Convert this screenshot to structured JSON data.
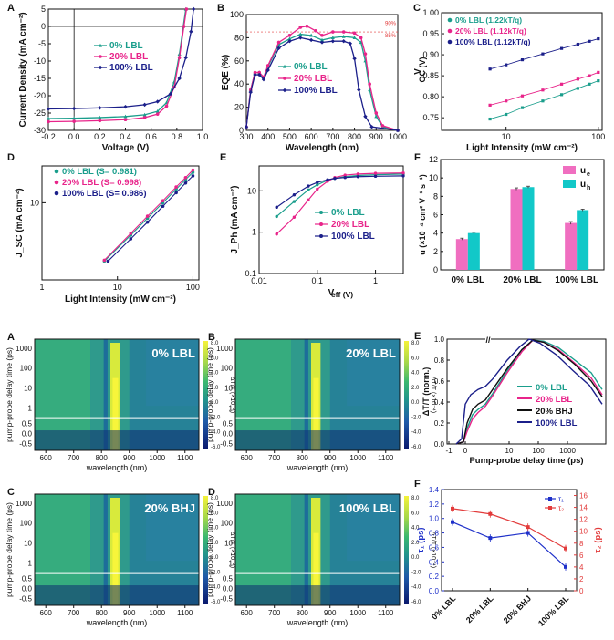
{
  "colors": {
    "teal": "#1a9e8c",
    "pink": "#e8248a",
    "navy": "#1b1f8a",
    "black": "#111111",
    "blue": "#1d2fc9",
    "red": "#e23b3b",
    "barpink": "#f06ec0",
    "barteal": "#12c8c8",
    "white": "#ffffff"
  },
  "top_panels": [
    {
      "letter": "A",
      "type": "line",
      "xlabel": "Voltage (V)",
      "ylabel": "Current Density (mA cm⁻²)",
      "xlim": [
        -0.2,
        1.0
      ],
      "ylim": [
        -30,
        5
      ],
      "xticks": [
        "-0.2",
        "0.0",
        "0.2",
        "0.4",
        "0.6",
        "0.8",
        "1.0"
      ],
      "yticks": [
        "5",
        "0",
        "-5",
        "-10",
        "-15",
        "-20",
        "-25",
        "-30"
      ],
      "legend": [
        "0% LBL",
        "20% LBL",
        "100% LBL"
      ],
      "series": [
        {
          "name": "0% LBL",
          "points": [
            [
              -0.2,
              -26.6
            ],
            [
              0.0,
              -26.5
            ],
            [
              0.2,
              -26.3
            ],
            [
              0.4,
              -26.0
            ],
            [
              0.55,
              -25.5
            ],
            [
              0.65,
              -24.5
            ],
            [
              0.72,
              -22.0
            ],
            [
              0.78,
              -16.0
            ],
            [
              0.82,
              -8.0
            ],
            [
              0.85,
              0.0
            ],
            [
              0.87,
              5.0
            ]
          ]
        },
        {
          "name": "20% LBL",
          "points": [
            [
              -0.2,
              -27.5
            ],
            [
              0.0,
              -27.4
            ],
            [
              0.2,
              -27.2
            ],
            [
              0.4,
              -26.9
            ],
            [
              0.55,
              -26.3
            ],
            [
              0.65,
              -25.3
            ],
            [
              0.72,
              -23.0
            ],
            [
              0.78,
              -17.5
            ],
            [
              0.82,
              -9.0
            ],
            [
              0.855,
              0.0
            ],
            [
              0.875,
              5.0
            ]
          ]
        },
        {
          "name": "100% LBL",
          "points": [
            [
              -0.2,
              -23.8
            ],
            [
              0.0,
              -23.7
            ],
            [
              0.2,
              -23.5
            ],
            [
              0.4,
              -23.2
            ],
            [
              0.55,
              -22.6
            ],
            [
              0.65,
              -21.7
            ],
            [
              0.75,
              -19.5
            ],
            [
              0.82,
              -15.0
            ],
            [
              0.87,
              -9.0
            ],
            [
              0.91,
              -1.5
            ],
            [
              0.93,
              5.0
            ]
          ]
        }
      ]
    },
    {
      "letter": "B",
      "type": "line",
      "xlabel": "Wavelength (nm)",
      "ylabel": "EQE (%)",
      "xlim": [
        300,
        1000
      ],
      "ylim": [
        0,
        100
      ],
      "xticks": [
        "300",
        "400",
        "500",
        "600",
        "700",
        "800",
        "900",
        "1000"
      ],
      "yticks": [
        "0",
        "20",
        "40",
        "60",
        "80",
        "100"
      ],
      "refs": [
        {
          "label": "90%",
          "value": 90,
          "color": "#e23b3b"
        },
        {
          "label": "85%",
          "value": 85,
          "color": "#e23b3b"
        }
      ],
      "legend": [
        "0% LBL",
        "20% LBL",
        "100% LBL"
      ],
      "series": [
        {
          "name": "0% LBL",
          "points": [
            [
              300,
              3
            ],
            [
              320,
              35
            ],
            [
              340,
              50
            ],
            [
              360,
              50
            ],
            [
              380,
              45
            ],
            [
              400,
              55
            ],
            [
              450,
              74
            ],
            [
              500,
              79
            ],
            [
              550,
              83
            ],
            [
              600,
              82
            ],
            [
              650,
              78
            ],
            [
              700,
              80
            ],
            [
              750,
              81
            ],
            [
              800,
              80
            ],
            [
              830,
              76
            ],
            [
              850,
              60
            ],
            [
              870,
              35
            ],
            [
              900,
              12
            ],
            [
              930,
              3
            ],
            [
              1000,
              0
            ]
          ]
        },
        {
          "name": "20% LBL",
          "points": [
            [
              300,
              3
            ],
            [
              320,
              35
            ],
            [
              340,
              50
            ],
            [
              360,
              50
            ],
            [
              380,
              46
            ],
            [
              400,
              56
            ],
            [
              450,
              76
            ],
            [
              500,
              82
            ],
            [
              550,
              89
            ],
            [
              580,
              90
            ],
            [
              620,
              86
            ],
            [
              650,
              82
            ],
            [
              700,
              85
            ],
            [
              750,
              85
            ],
            [
              800,
              84
            ],
            [
              830,
              80
            ],
            [
              850,
              66
            ],
            [
              870,
              40
            ],
            [
              900,
              15
            ],
            [
              930,
              4
            ],
            [
              1000,
              0
            ]
          ]
        },
        {
          "name": "100% LBL",
          "points": [
            [
              300,
              3
            ],
            [
              320,
              33
            ],
            [
              340,
              48
            ],
            [
              360,
              48
            ],
            [
              380,
              44
            ],
            [
              400,
              52
            ],
            [
              450,
              71
            ],
            [
              500,
              77
            ],
            [
              550,
              80
            ],
            [
              600,
              78
            ],
            [
              650,
              76
            ],
            [
              700,
              77
            ],
            [
              750,
              77
            ],
            [
              780,
              75
            ],
            [
              800,
              62
            ],
            [
              820,
              35
            ],
            [
              850,
              12
            ],
            [
              880,
              3
            ],
            [
              1000,
              0
            ]
          ]
        }
      ]
    },
    {
      "letter": "C",
      "type": "scatter",
      "xlabel": "Light Intensity (mW cm⁻²)",
      "ylabel": "V_OC (V)",
      "xscale": "log",
      "xlim": [
        2,
        110
      ],
      "ylim": [
        0.72,
        1.0
      ],
      "xticks": [
        "10",
        "100"
      ],
      "yticks": [
        "0.75",
        "0.80",
        "0.85",
        "0.90",
        "0.95",
        "1.00"
      ],
      "legend": [
        "0% LBL (1.22kT/q)",
        "20% LBL (1.12kT/q)",
        "100% LBL (1.12kT/q)"
      ],
      "series": [
        {
          "name": "0% LBL (1.22kT/q)",
          "points": [
            [
              6.7,
              0.747
            ],
            [
              10,
              0.758
            ],
            [
              15,
              0.774
            ],
            [
              25,
              0.79
            ],
            [
              40,
              0.805
            ],
            [
              60,
              0.82
            ],
            [
              80,
              0.83
            ],
            [
              100,
              0.838
            ]
          ]
        },
        {
          "name": "20% LBL (1.12kT/q)",
          "points": [
            [
              6.7,
              0.78
            ],
            [
              10,
              0.79
            ],
            [
              15,
              0.802
            ],
            [
              25,
              0.816
            ],
            [
              40,
              0.83
            ],
            [
              60,
              0.842
            ],
            [
              80,
              0.85
            ],
            [
              100,
              0.858
            ]
          ]
        },
        {
          "name": "100% LBL (1.12kT/q)",
          "points": [
            [
              6.7,
              0.866
            ],
            [
              10,
              0.876
            ],
            [
              15,
              0.888
            ],
            [
              25,
              0.902
            ],
            [
              40,
              0.915
            ],
            [
              60,
              0.925
            ],
            [
              80,
              0.932
            ],
            [
              100,
              0.938
            ]
          ]
        }
      ]
    },
    {
      "letter": "D",
      "type": "scatter",
      "xlabel": "Light Intensity (mW cm⁻²)",
      "ylabel": "J_SC (mA cm⁻²)",
      "xscale": "log",
      "yscale": "log",
      "xlim": [
        1,
        120
      ],
      "ylim": [
        1,
        30
      ],
      "xticks": [
        "1",
        "10",
        "100"
      ],
      "yticks": [
        "10"
      ],
      "legend": [
        "0% LBL (S= 0.981)",
        "20% LBL (S= 0.998)",
        "100% LBL (S= 0.986)"
      ],
      "series": [
        {
          "name": "0% LBL (S= 0.981)",
          "points": [
            [
              6.7,
              1.75
            ],
            [
              15,
              3.8
            ],
            [
              25,
              6.3
            ],
            [
              40,
              10
            ],
            [
              60,
              15
            ],
            [
              80,
              20
            ],
            [
              100,
              24.8
            ]
          ]
        },
        {
          "name": "20% LBL (S= 0.998)",
          "points": [
            [
              6.7,
              1.8
            ],
            [
              15,
              4.0
            ],
            [
              25,
              6.7
            ],
            [
              40,
              10.6
            ],
            [
              60,
              16
            ],
            [
              80,
              21.2
            ],
            [
              100,
              26.5
            ]
          ]
        },
        {
          "name": "100% LBL (S= 0.986)",
          "points": [
            [
              7.5,
              1.75
            ],
            [
              15,
              3.4
            ],
            [
              25,
              5.6
            ],
            [
              40,
              9
            ],
            [
              60,
              13.5
            ],
            [
              80,
              18
            ],
            [
              100,
              22.3
            ]
          ]
        }
      ]
    },
    {
      "letter": "E",
      "type": "line",
      "xlabel": "V_eff (V)",
      "ylabel": "J_Ph (mA cm⁻²)",
      "xscale": "log",
      "yscale": "log",
      "xlim": [
        0.01,
        3
      ],
      "ylim": [
        0.1,
        40
      ],
      "xticks": [
        "0.01",
        "0.1",
        "1"
      ],
      "yticks": [
        "0.1",
        "1",
        "10"
      ],
      "legend": [
        "0% LBL",
        "20% LBL",
        "100% LBL"
      ],
      "series": [
        {
          "name": "0% LBL",
          "points": [
            [
              0.02,
              2.4
            ],
            [
              0.04,
              5.5
            ],
            [
              0.07,
              10.5
            ],
            [
              0.1,
              14
            ],
            [
              0.15,
              18
            ],
            [
              0.2,
              20
            ],
            [
              0.3,
              22
            ],
            [
              0.5,
              23.5
            ],
            [
              1,
              24.5
            ],
            [
              3,
              25.5
            ]
          ]
        },
        {
          "name": "20% LBL",
          "points": [
            [
              0.02,
              0.9
            ],
            [
              0.04,
              2.3
            ],
            [
              0.07,
              6
            ],
            [
              0.1,
              11
            ],
            [
              0.15,
              17
            ],
            [
              0.2,
              21
            ],
            [
              0.3,
              24
            ],
            [
              0.5,
              25.5
            ],
            [
              1,
              26.5
            ],
            [
              3,
              27
            ]
          ]
        },
        {
          "name": "100% LBL",
          "points": [
            [
              0.02,
              4.0
            ],
            [
              0.04,
              8
            ],
            [
              0.07,
              13
            ],
            [
              0.1,
              16
            ],
            [
              0.15,
              18.5
            ],
            [
              0.2,
              20
            ],
            [
              0.3,
              21
            ],
            [
              0.5,
              22
            ],
            [
              1,
              22.5
            ],
            [
              3,
              23
            ]
          ]
        }
      ]
    },
    {
      "letter": "F",
      "type": "bar",
      "xlabel": "",
      "ylabel": "u (×10⁻⁴ cm² V⁻¹ s⁻¹)",
      "ylim": [
        0,
        12
      ],
      "yticks": [
        "0",
        "2",
        "4",
        "6",
        "8",
        "10",
        "12"
      ],
      "categories": [
        "0% LBL",
        "20% LBL",
        "100% LBL"
      ],
      "legend": [
        "u_e",
        "u_h"
      ],
      "series": [
        {
          "name": "u_e",
          "values": [
            3.35,
            8.8,
            5.1
          ],
          "errors": [
            0.1,
            0.12,
            0.15
          ]
        },
        {
          "name": "u_h",
          "values": [
            4.0,
            9.0,
            6.5
          ],
          "errors": [
            0.08,
            0.1,
            0.1
          ]
        }
      ]
    }
  ],
  "heatmaps": [
    {
      "letter": "A",
      "label": "0% LBL"
    },
    {
      "letter": "B",
      "label": "20% LBL"
    },
    {
      "letter": "C",
      "label": "20% BHJ"
    },
    {
      "letter": "D",
      "label": "100% LBL"
    }
  ],
  "heatmap_axes": {
    "xlabel": "wavelength (nm)",
    "ylabel": "pump-probe delay time (ps)",
    "xticks": [
      "600",
      "700",
      "800",
      "900",
      "1000",
      "1100"
    ],
    "yticks_upper": [
      "1000",
      "100",
      "10",
      "1"
    ],
    "yticks_lower": [
      "0.5",
      "0.0",
      "-0.5"
    ],
    "cbar_label": "ΔT/T (×10⁻⁴)",
    "cbar_ticks": [
      "8.0",
      "6.0",
      "4.0",
      "2.0",
      "0.0",
      "-2.0",
      "-4.0",
      "-6.0"
    ]
  },
  "bottom_right": [
    {
      "letter": "E",
      "type": "line",
      "xlabel": "Pump-probe delay time (ps)",
      "ylabel": "ΔT/T (norm.)",
      "ylim": [
        0,
        1.0
      ],
      "yticks": [
        "0.0",
        "0.2",
        "0.4",
        "0.6",
        "0.8",
        "1.0"
      ],
      "xticks": [
        "-1",
        "0",
        "10",
        "100",
        "1000"
      ],
      "legend": [
        "0% LBL",
        "20% LBL",
        "20% BHJ",
        "100% LBL"
      ]
    },
    {
      "letter": "F",
      "type": "line",
      "xlabel": "",
      "ylabel": "τ₁ (ps)",
      "ylabel2": "τ₂ (ps)",
      "categories": [
        "0% LBL",
        "20% LBL",
        "20% BHJ",
        "100% LBL"
      ],
      "ylim": [
        0,
        1.4
      ],
      "yticks": [
        "0.0",
        "0.2",
        "0.4",
        "0.6",
        "0.8",
        "1.0",
        "1.2",
        "1.4"
      ],
      "ylim2": [
        0,
        17
      ],
      "yticks2": [
        "0",
        "2",
        "4",
        "6",
        "8",
        "10",
        "12",
        "14",
        "16"
      ],
      "legend": [
        "τ₁",
        "τ₂"
      ],
      "series": [
        {
          "name": "τ₁",
          "values": [
            0.95,
            0.73,
            0.8,
            0.33
          ],
          "axis": "left"
        },
        {
          "name": "τ₂",
          "values": [
            13.8,
            12.9,
            10.7,
            7.1
          ],
          "axis": "right"
        }
      ]
    }
  ]
}
